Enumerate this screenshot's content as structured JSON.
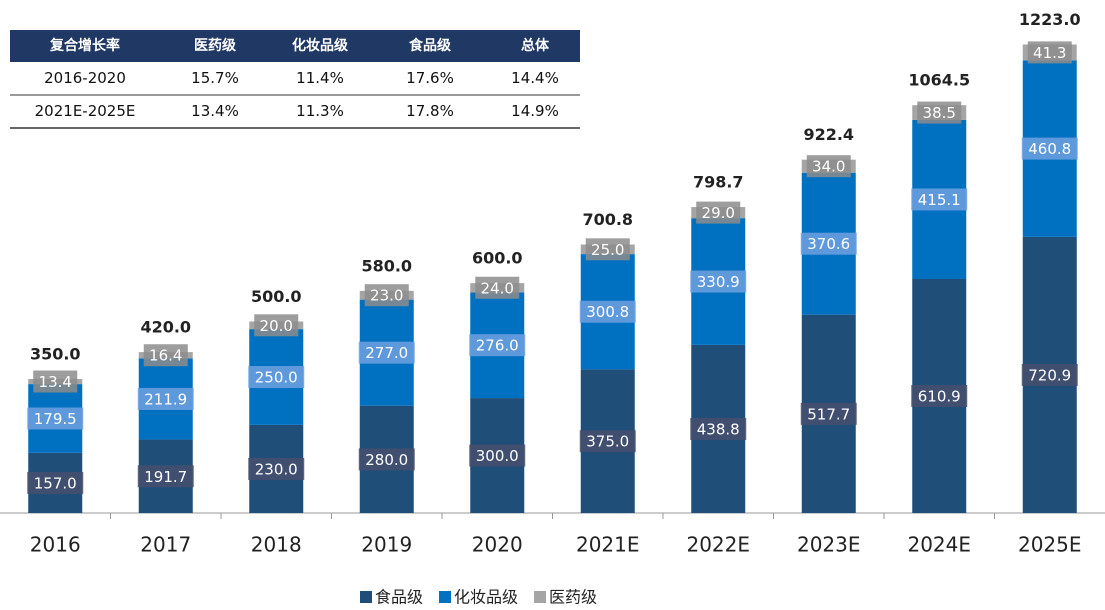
{
  "chart_data": {
    "type": "stacked_bar",
    "categories": [
      "2016",
      "2017",
      "2018",
      "2019",
      "2020",
      "2021E",
      "2022E",
      "2023E",
      "2024E",
      "2025E"
    ],
    "series": [
      {
        "name": "食品级",
        "color": "#1f4e79",
        "values": [
          157.0,
          191.7,
          230.0,
          280.0,
          300.0,
          375.0,
          438.8,
          517.7,
          610.9,
          720.9
        ],
        "value_labels": [
          "157.0",
          "191.7",
          "230.0",
          "280.0",
          "300.0",
          "375.0",
          "438.8",
          "517.7",
          "610.9",
          "720.9"
        ]
      },
      {
        "name": "化妆品级",
        "color": "#0070c0",
        "values": [
          179.5,
          211.9,
          250.0,
          277.0,
          276.0,
          300.8,
          330.9,
          370.6,
          415.1,
          460.8
        ],
        "value_labels": [
          "179.5",
          "211.9",
          "250.0",
          "277.0",
          "276.0",
          "300.8",
          "330.9",
          "370.6",
          "415.1",
          "460.8"
        ]
      },
      {
        "name": "医药级",
        "color": "#a5a5a5",
        "values": [
          13.4,
          16.4,
          20.0,
          23.0,
          24.0,
          25.0,
          29.0,
          34.0,
          38.5,
          41.3
        ],
        "value_labels": [
          "13.4",
          "16.4",
          "20.0",
          "23.0",
          "24.0",
          "25.0",
          "29.0",
          "34.0",
          "38.5",
          "41.3"
        ]
      }
    ],
    "totals": [
      350.0,
      420.0,
      500.0,
      580.0,
      600.0,
      700.8,
      798.7,
      922.4,
      1064.5,
      1223.0
    ],
    "total_labels": [
      "350.0",
      "420.0",
      "500.0",
      "580.0",
      "600.0",
      "700.8",
      "798.7",
      "922.4",
      "1064.5",
      "1223.0"
    ],
    "ylim": [
      0,
      1300
    ],
    "legend": "bottom"
  },
  "table": {
    "header": [
      "复合增长率",
      "医药级",
      "化妆品级",
      "食品级",
      "总体"
    ],
    "rows": [
      [
        "2016-2020",
        "15.7%",
        "11.4%",
        "17.6%",
        "14.4%"
      ],
      [
        "2021E-2025E",
        "13.4%",
        "11.3%",
        "17.8%",
        "14.9%"
      ]
    ]
  }
}
